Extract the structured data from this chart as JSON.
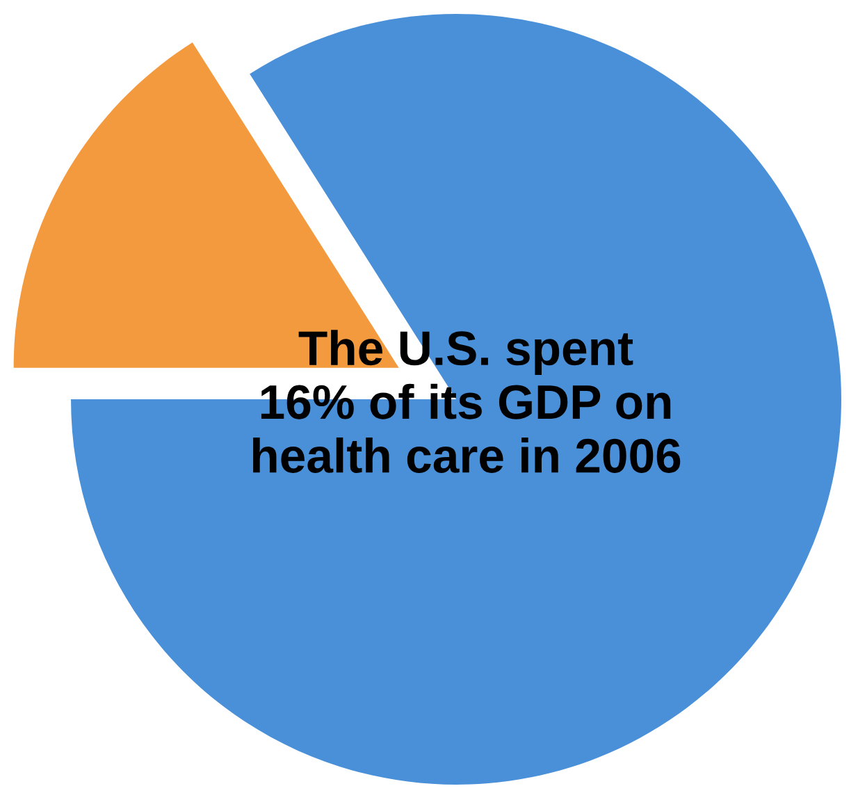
{
  "chart_data": {
    "type": "pie",
    "categories": [
      null,
      null
    ],
    "values": [
      16,
      84
    ],
    "colors": [
      "#f39a3e",
      "#4a90d9"
    ],
    "annotations": [
      "The U.S. spent\n16% of its GDP on\nhealth care in 2006"
    ]
  }
}
